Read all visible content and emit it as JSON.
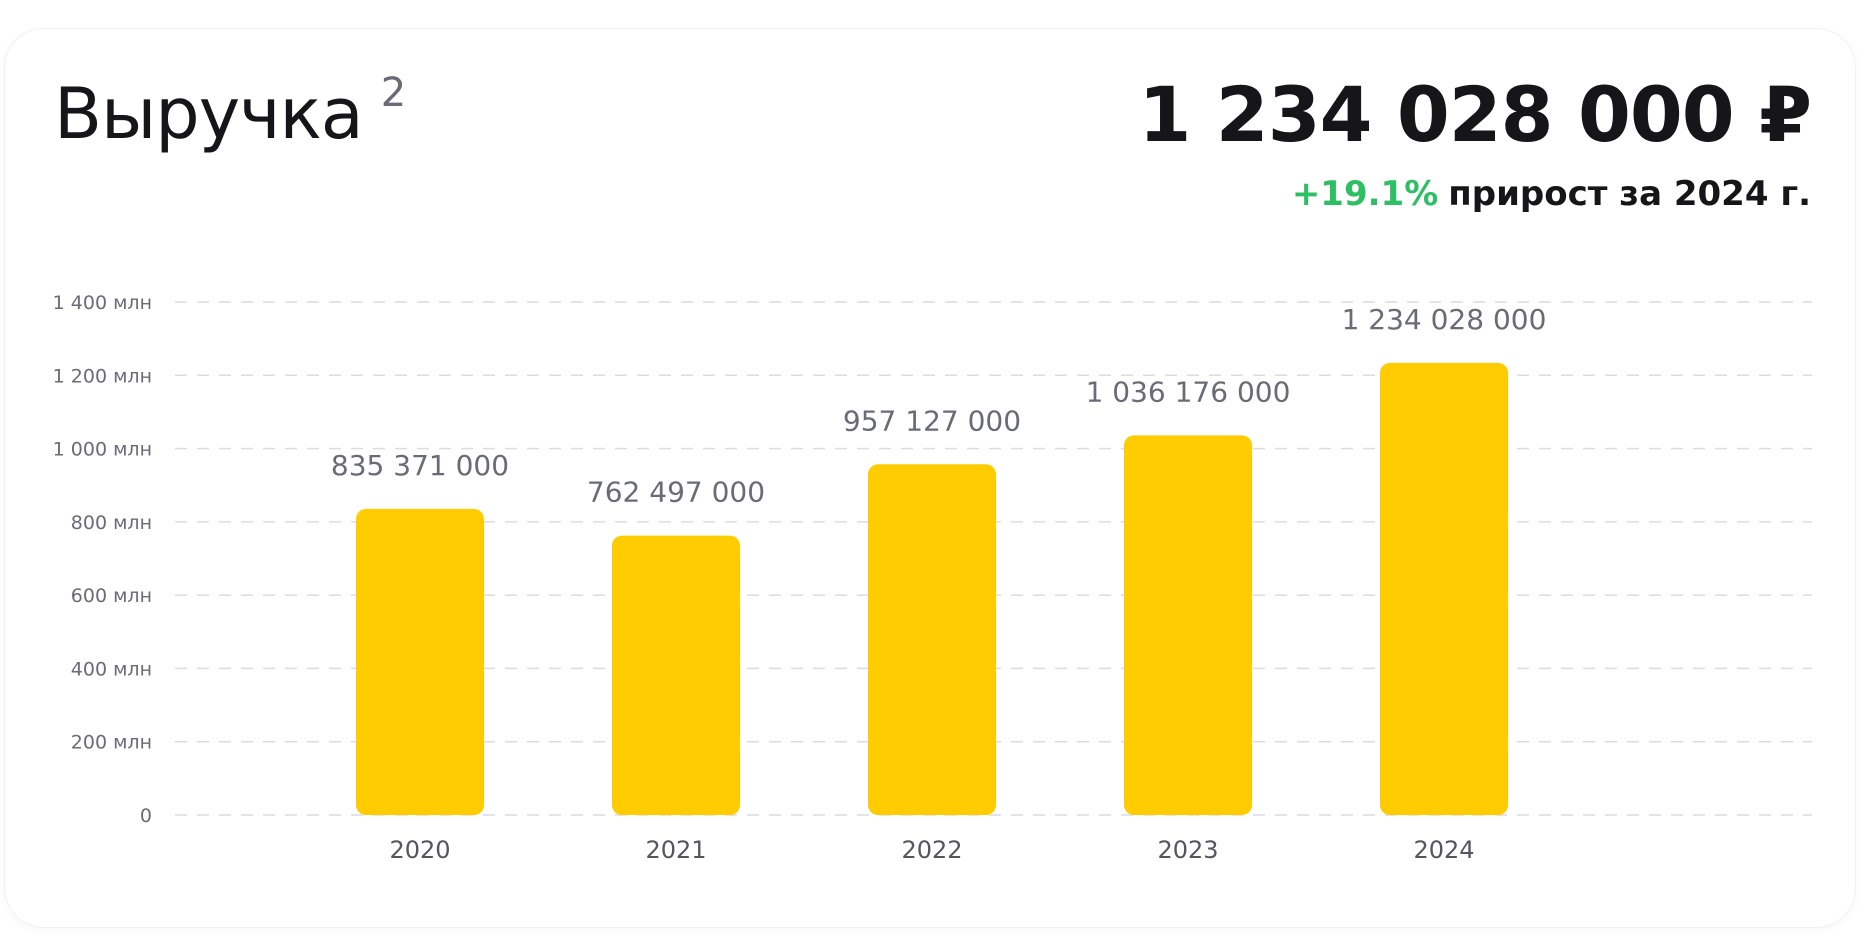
{
  "header": {
    "title": "Выручка",
    "footnote": "2",
    "total": "1 234 028 000 ₽",
    "growth_pct": "+19.1%",
    "growth_text": "прирост за 2024 г.",
    "growth_color": "#2cbf63"
  },
  "chart_data": {
    "type": "bar",
    "categories": [
      "2020",
      "2021",
      "2022",
      "2023",
      "2024"
    ],
    "values": [
      835371000,
      762497000,
      957127000,
      1036176000,
      1234028000
    ],
    "data_labels": [
      "835 371 000",
      "762 497 000",
      "957 127 000",
      "1 036 176 000",
      "1 234 028 000"
    ],
    "ylim": [
      0,
      1400000000
    ],
    "yticks": [
      0,
      200000000,
      400000000,
      600000000,
      800000000,
      1000000000,
      1200000000,
      1400000000
    ],
    "ytick_labels": [
      "0",
      "200 млн",
      "400 млн",
      "600 млн",
      "800 млн",
      "1 000 млн",
      "1 200 млн",
      "1 400 млн"
    ],
    "grid": true,
    "bar_color": "#fecc00",
    "title": "",
    "xlabel": "",
    "ylabel": ""
  }
}
